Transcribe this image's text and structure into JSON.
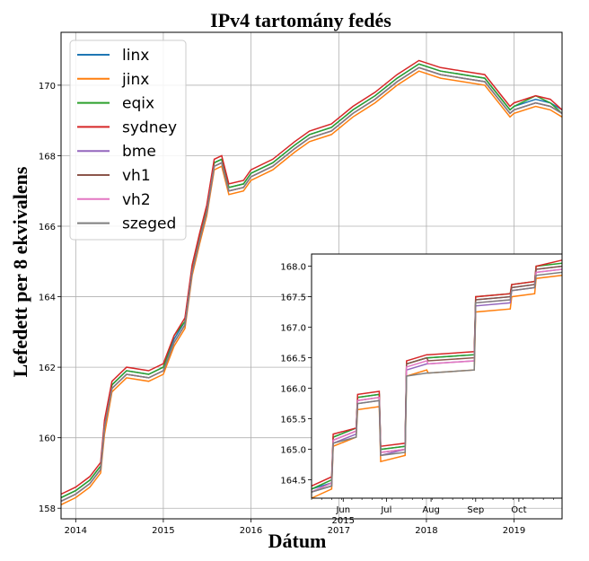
{
  "chart_data": [
    {
      "type": "line",
      "title": "IPv4 tartomány fedés",
      "xlabel": "Dátum",
      "ylabel": "Lefedett per 8 ekvivalens",
      "xlim": [
        "2013-11-01",
        "2019-07-20"
      ],
      "ylim": [
        157.7,
        171.5
      ],
      "xticks": [
        "2014",
        "2015",
        "2016",
        "2017",
        "2018",
        "2019"
      ],
      "yticks": [
        "158",
        "160",
        "162",
        "164",
        "166",
        "168",
        "170"
      ],
      "grid": true,
      "legend_position": "upper-left",
      "x": [
        "2013-11-01",
        "2014-01-01",
        "2014-03-01",
        "2014-04-15",
        "2014-05-01",
        "2014-06-01",
        "2014-08-01",
        "2014-11-01",
        "2015-01-01",
        "2015-02-15",
        "2015-04-01",
        "2015-05-01",
        "2015-06-01",
        "2015-07-01",
        "2015-08-01",
        "2015-09-01",
        "2015-10-01",
        "2015-12-01",
        "2016-01-01",
        "2016-04-01",
        "2016-07-01",
        "2016-09-01",
        "2016-12-01",
        "2017-03-01",
        "2017-06-01",
        "2017-09-01",
        "2017-12-01",
        "2018-03-01",
        "2018-06-01",
        "2018-09-01",
        "2018-12-15",
        "2019-01-01",
        "2019-04-01",
        "2019-06-01",
        "2019-07-20"
      ],
      "series": [
        {
          "name": "linx",
          "color": "#1f77b4",
          "values": [
            158.3,
            158.5,
            158.8,
            159.2,
            160.4,
            161.5,
            161.9,
            161.8,
            162.0,
            162.8,
            163.3,
            164.8,
            165.7,
            166.5,
            167.8,
            167.9,
            167.1,
            167.2,
            167.5,
            167.8,
            168.3,
            168.6,
            168.8,
            169.3,
            169.7,
            170.2,
            170.6,
            170.4,
            170.3,
            170.2,
            169.3,
            169.4,
            169.6,
            169.5,
            169.3
          ]
        },
        {
          "name": "jinx",
          "color": "#ff7f0e",
          "values": [
            158.1,
            158.3,
            158.6,
            159.0,
            160.1,
            161.3,
            161.7,
            161.6,
            161.8,
            162.6,
            163.1,
            164.6,
            165.5,
            166.3,
            167.6,
            167.7,
            166.9,
            167.0,
            167.3,
            167.6,
            168.1,
            168.4,
            168.6,
            169.1,
            169.5,
            170.0,
            170.4,
            170.2,
            170.1,
            170.0,
            169.1,
            169.2,
            169.4,
            169.3,
            169.1
          ]
        },
        {
          "name": "eqix",
          "color": "#2ca02c",
          "values": [
            158.3,
            158.5,
            158.8,
            159.2,
            160.4,
            161.5,
            161.9,
            161.8,
            162.0,
            162.9,
            163.3,
            164.8,
            165.7,
            166.5,
            167.8,
            167.9,
            167.1,
            167.2,
            167.5,
            167.8,
            168.3,
            168.6,
            168.8,
            169.3,
            169.7,
            170.2,
            170.6,
            170.4,
            170.3,
            170.2,
            169.3,
            169.4,
            169.7,
            169.5,
            169.2
          ]
        },
        {
          "name": "sydney",
          "color": "#d62728",
          "values": [
            158.4,
            158.6,
            158.9,
            159.3,
            160.5,
            161.6,
            162.0,
            161.9,
            162.1,
            162.9,
            163.4,
            164.9,
            165.8,
            166.6,
            167.9,
            168.0,
            167.2,
            167.3,
            167.6,
            167.9,
            168.4,
            168.7,
            168.9,
            169.4,
            169.8,
            170.3,
            170.7,
            170.5,
            170.4,
            170.3,
            169.4,
            169.5,
            169.7,
            169.6,
            169.3
          ]
        },
        {
          "name": "bme",
          "color": "#9467bd",
          "values": [
            158.2,
            158.4,
            158.7,
            159.1,
            160.3,
            161.4,
            161.8,
            161.7,
            161.9,
            162.7,
            163.2,
            164.7,
            165.6,
            166.4,
            167.7,
            167.8,
            167.0,
            167.1,
            167.4,
            167.7,
            168.2,
            168.5,
            168.7,
            169.2,
            169.6,
            170.1,
            170.5,
            170.3,
            170.2,
            170.1,
            169.2,
            169.3,
            169.5,
            169.4,
            169.2
          ]
        },
        {
          "name": "vh1",
          "color": "#8c564b",
          "values": [
            158.2,
            158.4,
            158.7,
            159.1,
            160.3,
            161.4,
            161.8,
            161.7,
            161.9,
            162.7,
            163.2,
            164.7,
            165.6,
            166.4,
            167.7,
            167.8,
            167.0,
            167.1,
            167.4,
            167.7,
            168.2,
            168.5,
            168.7,
            169.2,
            169.6,
            170.1,
            170.5,
            170.3,
            170.2,
            170.1,
            169.2,
            169.3,
            169.5,
            169.4,
            169.2
          ]
        },
        {
          "name": "vh2",
          "color": "#e377c2",
          "values": [
            158.2,
            158.4,
            158.7,
            159.1,
            160.3,
            161.4,
            161.8,
            161.7,
            161.9,
            162.7,
            163.2,
            164.7,
            165.6,
            166.4,
            167.7,
            167.8,
            167.0,
            167.1,
            167.4,
            167.7,
            168.2,
            168.5,
            168.7,
            169.2,
            169.6,
            170.1,
            170.5,
            170.3,
            170.2,
            170.1,
            169.2,
            169.3,
            169.5,
            169.4,
            169.2
          ]
        },
        {
          "name": "szeged",
          "color": "#7f7f7f",
          "values": [
            158.2,
            158.4,
            158.7,
            159.1,
            160.3,
            161.4,
            161.8,
            161.7,
            161.9,
            162.7,
            163.2,
            164.7,
            165.6,
            166.4,
            167.7,
            167.8,
            167.0,
            167.1,
            167.4,
            167.7,
            168.2,
            168.5,
            168.7,
            169.2,
            169.6,
            170.1,
            170.5,
            170.3,
            170.2,
            170.1,
            169.2,
            169.3,
            169.5,
            169.4,
            169.2
          ]
        }
      ]
    },
    {
      "type": "line",
      "title": "",
      "xlim": [
        "2015-05-10",
        "2015-10-31"
      ],
      "ylim": [
        164.2,
        168.2
      ],
      "xticks": [
        "Jun\n2015",
        "Jul",
        "Aug",
        "Sep",
        "Oct"
      ],
      "yticks": [
        "164.5",
        "165.0",
        "165.5",
        "166.0",
        "166.5",
        "167.0",
        "167.5",
        "168.0"
      ],
      "grid": false,
      "x": [
        "2015-05-10",
        "2015-05-24",
        "2015-05-25",
        "2015-06-10",
        "2015-06-11",
        "2015-06-26",
        "2015-06-27",
        "2015-07-14",
        "2015-07-15",
        "2015-07-29",
        "2015-07-30",
        "2015-08-31",
        "2015-09-01",
        "2015-09-25",
        "2015-09-26",
        "2015-10-12",
        "2015-10-13",
        "2015-10-31"
      ],
      "series": [
        {
          "name": "linx",
          "color": "#1f77b4",
          "values": [
            164.35,
            164.45,
            165.2,
            165.35,
            165.85,
            165.9,
            165.0,
            165.05,
            166.4,
            166.5,
            166.5,
            166.55,
            167.45,
            167.5,
            167.65,
            167.7,
            167.95,
            168.0
          ]
        },
        {
          "name": "jinx",
          "color": "#ff7f0e",
          "values": [
            164.2,
            164.35,
            165.05,
            165.2,
            165.65,
            165.7,
            164.8,
            164.9,
            166.2,
            166.3,
            166.25,
            166.3,
            167.25,
            167.3,
            167.5,
            167.55,
            167.8,
            167.85
          ]
        },
        {
          "name": "eqix",
          "color": "#2ca02c",
          "values": [
            164.35,
            164.5,
            165.2,
            165.35,
            165.85,
            165.9,
            165.0,
            165.05,
            166.4,
            166.5,
            166.5,
            166.55,
            167.5,
            167.55,
            167.7,
            167.75,
            168.0,
            168.05
          ]
        },
        {
          "name": "sydney",
          "color": "#d62728",
          "values": [
            164.4,
            164.55,
            165.25,
            165.35,
            165.9,
            165.95,
            165.05,
            165.1,
            166.45,
            166.55,
            166.55,
            166.6,
            167.5,
            167.55,
            167.7,
            167.75,
            168.0,
            168.1
          ]
        },
        {
          "name": "bme",
          "color": "#9467bd",
          "values": [
            164.3,
            164.4,
            165.1,
            165.25,
            165.75,
            165.8,
            164.9,
            165.0,
            166.3,
            166.4,
            166.4,
            166.45,
            167.35,
            167.4,
            167.6,
            167.65,
            167.9,
            167.95
          ]
        },
        {
          "name": "vh1",
          "color": "#8c564b",
          "values": [
            164.3,
            164.45,
            165.15,
            165.3,
            165.8,
            165.85,
            164.95,
            165.0,
            166.4,
            166.5,
            166.45,
            166.5,
            167.45,
            167.5,
            167.65,
            167.7,
            167.95,
            168.0
          ]
        },
        {
          "name": "vh2",
          "color": "#e377c2",
          "values": [
            164.3,
            164.45,
            165.15,
            165.3,
            165.8,
            165.85,
            164.95,
            165.0,
            166.35,
            166.45,
            166.4,
            166.45,
            167.4,
            167.45,
            167.6,
            167.65,
            167.9,
            167.95
          ]
        },
        {
          "name": "szeged",
          "color": "#7f7f7f",
          "values": [
            164.3,
            164.4,
            165.1,
            165.2,
            165.75,
            165.8,
            164.9,
            164.95,
            166.2,
            166.25,
            166.25,
            166.3,
            167.4,
            167.45,
            167.6,
            167.65,
            167.85,
            167.9
          ]
        }
      ]
    }
  ]
}
